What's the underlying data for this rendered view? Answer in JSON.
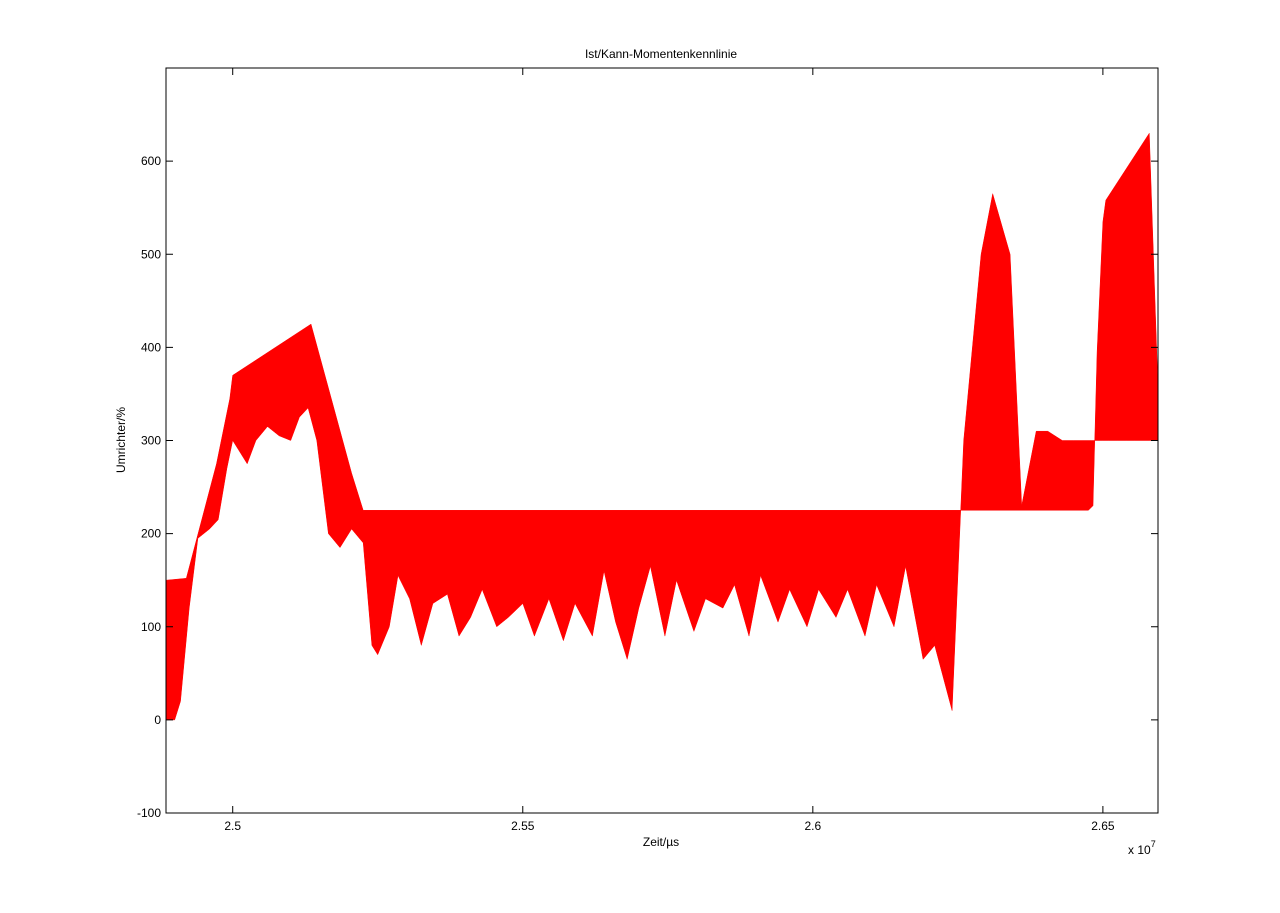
{
  "chart_data": {
    "type": "area",
    "title": "Ist/Kann-Momentenkennlinie",
    "xlabel": "Zeit/µs",
    "ylabel": "Umrichter/%",
    "x_multiplier_label": "x 10",
    "x_multiplier_exponent": "7",
    "xlim": [
      2.4885,
      2.6595
    ],
    "ylim": [
      -100,
      700
    ],
    "x_ticks": [
      2.5,
      2.55,
      2.6,
      2.65
    ],
    "x_tick_labels": [
      "2.5",
      "2.55",
      "2.6",
      "2.65"
    ],
    "y_ticks": [
      -100,
      0,
      100,
      200,
      300,
      400,
      500,
      600
    ],
    "y_tick_labels": [
      "-100",
      "0",
      "100",
      "200",
      "300",
      "400",
      "500",
      "600"
    ],
    "grid": false,
    "fill_color": "#ff0000",
    "series": [
      {
        "upper": {
          "x": [
            2.4885,
            2.492,
            2.4972,
            2.4995,
            2.5,
            2.5135,
            2.5205,
            2.5225,
            2.526,
            2.6475,
            2.6483,
            2.649,
            2.65,
            2.6505,
            2.658,
            2.6595
          ],
          "y": [
            150,
            152,
            275,
            345,
            370,
            425,
            265,
            225,
            225,
            225,
            230,
            395,
            535,
            558,
            630,
            355
          ]
        },
        "lower": {
          "x": [
            2.4885,
            2.49,
            2.491,
            2.4925,
            2.494,
            2.496,
            2.4975,
            2.499,
            2.5,
            2.501,
            2.5025,
            2.504,
            2.506,
            2.508,
            2.51,
            2.5115,
            2.513,
            2.5145,
            2.5165,
            2.5185,
            2.5205,
            2.5225,
            2.524,
            2.525,
            2.527,
            2.5285,
            2.5305,
            2.5325,
            2.5345,
            2.537,
            2.539,
            2.541,
            2.543,
            2.5455,
            2.5475,
            2.55,
            2.552,
            2.5545,
            2.557,
            2.559,
            2.562,
            2.564,
            2.566,
            2.568,
            2.57,
            2.572,
            2.5745,
            2.5765,
            2.5795,
            2.5815,
            2.5845,
            2.5865,
            2.589,
            2.591,
            2.594,
            2.596,
            2.599,
            2.601,
            2.604,
            2.606,
            2.609,
            2.611,
            2.614,
            2.616,
            2.619,
            2.621,
            2.624,
            2.626,
            2.629,
            2.631,
            2.634,
            2.636,
            2.6385,
            2.6405,
            2.643,
            2.645,
            2.647,
            2.648,
            2.649,
            2.65,
            2.651,
            2.6525,
            2.654,
            2.6555,
            2.657,
            2.658,
            2.6595
          ],
          "y": [
            0,
            0,
            20,
            120,
            195,
            205,
            215,
            270,
            300,
            290,
            275,
            300,
            315,
            305,
            300,
            325,
            335,
            300,
            200,
            185,
            205,
            190,
            80,
            70,
            100,
            155,
            130,
            80,
            125,
            135,
            90,
            110,
            140,
            100,
            110,
            125,
            90,
            130,
            85,
            125,
            90,
            160,
            105,
            65,
            120,
            165,
            90,
            150,
            95,
            130,
            120,
            145,
            90,
            155,
            105,
            140,
            100,
            140,
            110,
            140,
            90,
            145,
            100,
            165,
            65,
            80,
            10,
            300,
            500,
            565,
            500,
            230,
            310,
            310,
            300,
            300,
            300,
            300,
            300,
            300,
            300,
            300,
            300,
            300,
            300,
            300,
            300
          ]
        }
      }
    ]
  }
}
